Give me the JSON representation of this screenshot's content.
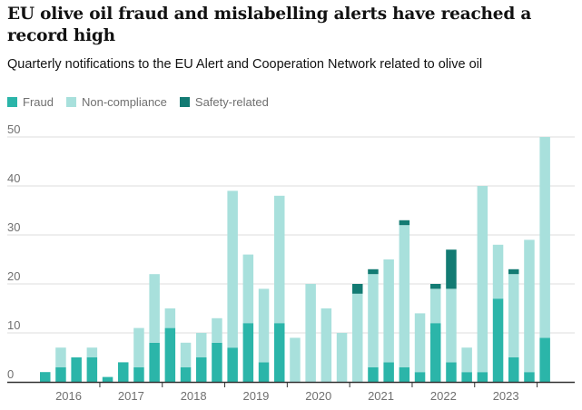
{
  "title": "EU olive oil fraud and mislabelling alerts have reached a record high",
  "subtitle": "Quarterly notifications to the EU Alert and Cooperation Network related to olive oil",
  "colors": {
    "fraud": "#2bb5a9",
    "non_compliance": "#a8e0dc",
    "safety": "#137b73",
    "grid": "#dcdcdc",
    "axis": "#333333"
  },
  "legend": [
    {
      "label": "Fraud",
      "color": "#2bb5a9"
    },
    {
      "label": "Non-compliance",
      "color": "#a8e0dc"
    },
    {
      "label": "Safety-related",
      "color": "#137b73"
    }
  ],
  "chart_data": {
    "type": "bar",
    "stacked": true,
    "title": "EU olive oil fraud and mislabelling alerts have reached a record high",
    "subtitle": "Quarterly notifications to the EU Alert and Cooperation Network related to olive oil",
    "ylim": [
      0,
      50
    ],
    "yticks": [
      0,
      10,
      20,
      30,
      40,
      50
    ],
    "grid": true,
    "legend_position": "top-left",
    "year_labels": [
      "2016",
      "2017",
      "2018",
      "2019",
      "2020",
      "2021",
      "2022",
      "2023"
    ],
    "categories": [
      "2016 Q1",
      "2016 Q2",
      "2016 Q3",
      "2016 Q4",
      "2017 Q1",
      "2017 Q2",
      "2017 Q3",
      "2017 Q4",
      "2018 Q1",
      "2018 Q2",
      "2018 Q3",
      "2018 Q4",
      "2019 Q1",
      "2019 Q2",
      "2019 Q3",
      "2019 Q4",
      "2020 Q1",
      "2020 Q2",
      "2020 Q3",
      "2020 Q4",
      "2021 Q1",
      "2021 Q2",
      "2021 Q3",
      "2021 Q4",
      "2022 Q1",
      "2022 Q2",
      "2022 Q3",
      "2022 Q4",
      "2023 Q1",
      "2023 Q2",
      "2023 Q3",
      "2023 Q4"
    ],
    "series": [
      {
        "name": "Fraud",
        "key": "fraud",
        "values": [
          2,
          3,
          5,
          5,
          1,
          4,
          3,
          8,
          11,
          3,
          5,
          8,
          7,
          12,
          4,
          12,
          0,
          0,
          0,
          0,
          0,
          3,
          4,
          3,
          2,
          12,
          4,
          2,
          2,
          17,
          5,
          2
        ]
      },
      {
        "name": "Non-compliance",
        "key": "non_compliance",
        "values": [
          0,
          4,
          0,
          2,
          0,
          0,
          8,
          14,
          4,
          5,
          5,
          5,
          32,
          14,
          15,
          26,
          9,
          20,
          15,
          10,
          18,
          19,
          21,
          29,
          12,
          7,
          15,
          5,
          38,
          11,
          17,
          27
        ]
      },
      {
        "name": "Safety-related",
        "key": "safety",
        "values": [
          0,
          0,
          0,
          0,
          0,
          0,
          0,
          0,
          0,
          0,
          0,
          0,
          0,
          0,
          0,
          0,
          0,
          0,
          0,
          0,
          2,
          1,
          0,
          1,
          0,
          1,
          8,
          0,
          0,
          0,
          1,
          0
        ]
      }
    ],
    "extra_bar": {
      "category_after": "2023 Q4",
      "fraud": 9,
      "non_compliance": 41,
      "safety": 0
    }
  }
}
